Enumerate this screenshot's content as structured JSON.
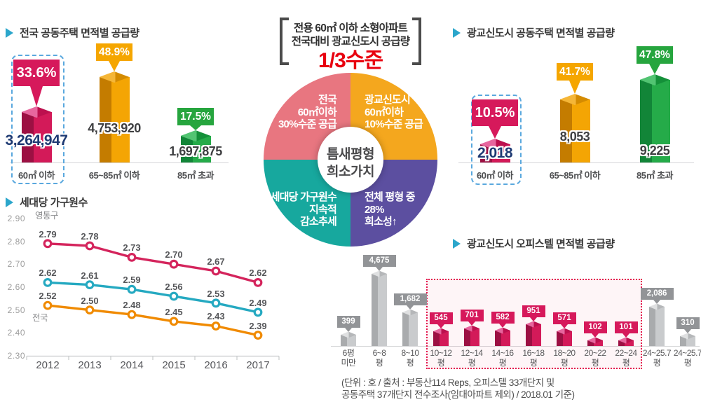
{
  "header": {
    "line1": "전용 60㎡ 이하 소형아파트",
    "line2": "전국대비 광교신도시 공급량",
    "line3": "1/3수준"
  },
  "donut": {
    "center_line1": "틈새평형",
    "center_line2": "희소가치",
    "quadrants": [
      {
        "id": "pink",
        "lines": [
          "전국",
          "60㎡이하",
          "30%수준 공급"
        ],
        "color": "#E87680"
      },
      {
        "id": "orange",
        "lines": [
          "광교신도시",
          "60㎡이하",
          "10%수준 공급"
        ],
        "color": "#F4A71E"
      },
      {
        "id": "teal",
        "lines": [
          "세대당 가구원수",
          "지속적",
          "감소추세"
        ],
        "color": "#17A89E"
      },
      {
        "id": "purple",
        "lines": [
          "전체 평형 중",
          "28%",
          "희소성↑"
        ],
        "color": "#5C4FA0"
      }
    ]
  },
  "chart_data": [
    {
      "id": "national",
      "type": "bar",
      "title": "전국 공동주택 면적별 공급량",
      "unit": "호",
      "categories": [
        "60㎡ 이하",
        "65~85㎡ 이하",
        "85㎡ 초과"
      ],
      "values": [
        3264947,
        4753920,
        1697875
      ],
      "value_labels": [
        "3,264,947",
        "4,753,920",
        "1,697,875"
      ],
      "pct_labels": [
        "33.6%",
        "48.9%",
        "17.5%"
      ],
      "colors": [
        "crimson",
        "orange",
        "green"
      ],
      "highlight_index": 0
    },
    {
      "id": "gwanggyo",
      "type": "bar",
      "title": "광교신도시 공동주택 면적별 공급량",
      "unit": "호",
      "categories": [
        "60㎡ 이하",
        "65~85㎡ 이하",
        "85㎡ 초과"
      ],
      "values": [
        2018,
        8053,
        9225
      ],
      "value_labels": [
        "2,018",
        "8,053",
        "9,225"
      ],
      "pct_labels": [
        "10.5%",
        "41.7%",
        "47.8%"
      ],
      "colors": [
        "crimson",
        "orange",
        "green"
      ],
      "highlight_index": 0
    },
    {
      "id": "household-size",
      "type": "line",
      "title": "세대당 가구원수",
      "x": [
        2012,
        2013,
        2014,
        2015,
        2016,
        2017
      ],
      "ylim": [
        2.3,
        2.9
      ],
      "yticks": [
        2.9,
        2.8,
        2.7,
        2.6,
        2.5,
        2.4,
        2.3
      ],
      "grid": false,
      "series": [
        {
          "name": "영통구",
          "color": "#D4245C",
          "values": [
            2.79,
            2.78,
            2.73,
            2.7,
            2.67,
            2.62
          ]
        },
        {
          "name": "",
          "color": "#25A9C1",
          "values": [
            2.62,
            2.61,
            2.59,
            2.56,
            2.53,
            2.49
          ]
        },
        {
          "name": "전국",
          "color": "#F08A00",
          "values": [
            2.52,
            2.5,
            2.48,
            2.45,
            2.43,
            2.39
          ]
        }
      ]
    },
    {
      "id": "officetel",
      "type": "bar",
      "title": "광교신도시 오피스텔 면적별 공급량",
      "unit": "호",
      "categories": [
        [
          "6평",
          "미만"
        ],
        [
          "6~8",
          "평"
        ],
        [
          "8~10",
          "평"
        ],
        [
          "10~12",
          "평"
        ],
        [
          "12~14",
          "평"
        ],
        [
          "14~16",
          "평"
        ],
        [
          "16~18",
          "평"
        ],
        [
          "18~20",
          "평"
        ],
        [
          "20~22",
          "평"
        ],
        [
          "22~24",
          "평"
        ],
        [
          "24~25.7",
          "평"
        ],
        [
          "24~25.7",
          "평"
        ]
      ],
      "values": [
        399,
        4675,
        1682,
        545,
        701,
        582,
        951,
        571,
        102,
        101,
        2086,
        310
      ],
      "value_labels": [
        "399",
        "4,675",
        "1,682",
        "545",
        "701",
        "582",
        "951",
        "571",
        "102",
        "101",
        "2,086",
        "310"
      ],
      "colors": [
        "gray",
        "gray",
        "gray",
        "pink",
        "pink",
        "pink",
        "pink",
        "pink",
        "pink",
        "pink",
        "gray",
        "gray"
      ],
      "highlight_range": [
        3,
        9
      ]
    }
  ],
  "source": {
    "line1": "(단위 : 호 / 출처 : 부동산114 Reps, 오피스텔 33개단지 및",
    "line2": "공동주택 37개단지 전수조사(임대아파트 제외) / 2018.01 기준)"
  },
  "colors": {
    "title_marker": "#2BA6CB",
    "crimson": "#D6195B",
    "orange": "#F5A600",
    "green": "#26A53E",
    "navy": "#1E3A73",
    "charcoal": "#3E3F41",
    "gray_callout": "#929497",
    "highlight_dash": "#5AA8DE",
    "dotted_box": "#E3164E",
    "header_red": "#E8000F",
    "baseline_gray": "#D5D6D8"
  }
}
